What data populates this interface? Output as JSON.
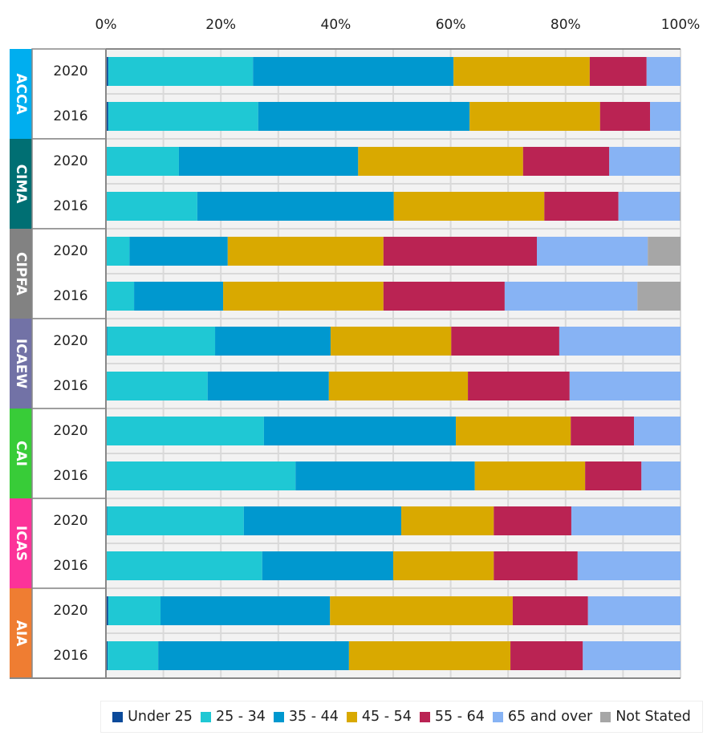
{
  "chart_data": {
    "type": "bar",
    "orientation": "horizontal",
    "stacked": "percent",
    "xlim": [
      0,
      100
    ],
    "x_ticks": [
      "0%",
      "20%",
      "40%",
      "60%",
      "80%",
      "100%"
    ],
    "grid": true,
    "legend_position": "bottom",
    "series_names": [
      "Under 25",
      "25 - 34",
      "35 - 44",
      "45 - 54",
      "55 - 64",
      "65 and over",
      "Not Stated"
    ],
    "series_colors": [
      "#0b4a9a",
      "#1fc8d4",
      "#0098cf",
      "#d9a900",
      "#ba2353",
      "#87b3f4",
      "#a6a6a6"
    ],
    "groups": [
      {
        "name": "ACCA",
        "color": "#00aeef",
        "rows": [
          {
            "year": "2020",
            "values": [
              0.4,
              25.2,
              34.9,
              23.7,
              9.9,
              5.9,
              0
            ]
          },
          {
            "year": "2016",
            "values": [
              0.4,
              26.1,
              36.8,
              22.7,
              8.7,
              5.3,
              0
            ]
          }
        ]
      },
      {
        "name": "CIMA",
        "color": "#006f73",
        "rows": [
          {
            "year": "2020",
            "values": [
              0,
              12.7,
              31.2,
              28.7,
              15.0,
              12.3,
              0.1
            ]
          },
          {
            "year": "2016",
            "values": [
              0,
              15.9,
              34.2,
              26.2,
              12.9,
              10.7,
              0.1
            ]
          }
        ]
      },
      {
        "name": "CIPFA",
        "color": "#828282",
        "rows": [
          {
            "year": "2020",
            "values": [
              0,
              4.1,
              17.1,
              27.1,
              26.7,
              19.3,
              5.7
            ]
          },
          {
            "year": "2016",
            "values": [
              0,
              4.9,
              15.5,
              27.9,
              21.1,
              23.1,
              7.5
            ]
          }
        ]
      },
      {
        "name": "ICAEW",
        "color": "#7272a6",
        "rows": [
          {
            "year": "2020",
            "values": [
              0.2,
              18.8,
              20.1,
              21.0,
              18.8,
              21.1,
              0
            ]
          },
          {
            "year": "2016",
            "values": [
              0,
              17.7,
              21.1,
              24.2,
              17.7,
              19.3,
              0
            ]
          }
        ]
      },
      {
        "name": "CAI",
        "color": "#38cc38",
        "rows": [
          {
            "year": "2020",
            "values": [
              0,
              27.5,
              33.4,
              20.0,
              11.0,
              8.1,
              0
            ]
          },
          {
            "year": "2016",
            "values": [
              0,
              33.0,
              31.2,
              19.2,
              9.8,
              6.8,
              0
            ]
          }
        ]
      },
      {
        "name": "ICAS",
        "color": "#fc3399",
        "rows": [
          {
            "year": "2020",
            "values": [
              0.2,
              23.8,
              27.4,
              16.1,
              13.5,
              19.0,
              0
            ]
          },
          {
            "year": "2016",
            "values": [
              0,
              27.2,
              22.8,
              17.5,
              14.6,
              17.9,
              0
            ]
          }
        ]
      },
      {
        "name": "AIA",
        "color": "#ef7d32",
        "rows": [
          {
            "year": "2020",
            "values": [
              0.4,
              9.1,
              29.5,
              31.8,
              13.1,
              16.1,
              0
            ]
          },
          {
            "year": "2016",
            "values": [
              0.3,
              8.8,
              33.2,
              28.1,
              12.6,
              17.0,
              0
            ]
          }
        ]
      }
    ]
  }
}
